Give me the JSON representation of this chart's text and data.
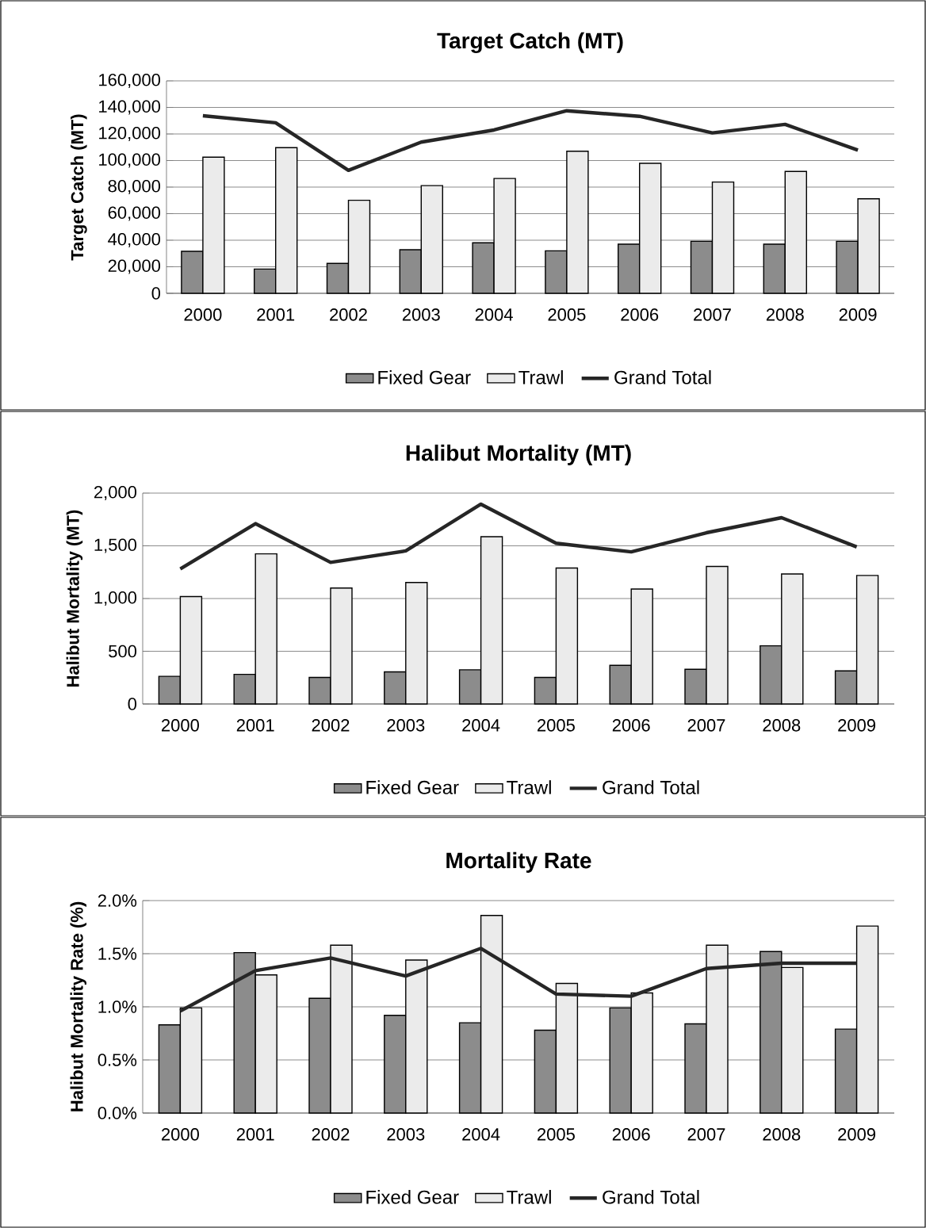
{
  "chart_data": [
    {
      "type": "bar",
      "title": "Target Catch (MT)",
      "ylabel": "Target Catch (MT)",
      "categories": [
        "2000",
        "2001",
        "2002",
        "2003",
        "2004",
        "2005",
        "2006",
        "2007",
        "2008",
        "2009"
      ],
      "series": [
        {
          "name": "Fixed Gear",
          "color": "#8c8c8c",
          "values": [
            31600,
            18300,
            22500,
            32800,
            38100,
            32000,
            37000,
            39200,
            37000,
            39200
          ]
        },
        {
          "name": "Trawl",
          "color": "#ebebeb",
          "values": [
            102500,
            109700,
            70100,
            81100,
            86500,
            107000,
            97900,
            83800,
            91800,
            71200
          ]
        },
        {
          "name": "Grand Total",
          "type": "line",
          "color": "#262626",
          "values": [
            133700,
            128400,
            92600,
            113900,
            123000,
            137500,
            133300,
            120800,
            127200,
            107800
          ]
        }
      ],
      "ylim": [
        0,
        160000
      ],
      "yticks": [
        0,
        {
          "value": 20000,
          "label": "20,000"
        },
        {
          "value": 40000,
          "label": "40,000"
        },
        {
          "value": 60000,
          "label": "60,000"
        },
        {
          "value": 80000,
          "label": "80,000"
        },
        {
          "value": 100000,
          "label": "100,000"
        },
        {
          "value": 120000,
          "label": "120,000"
        },
        {
          "value": 140000,
          "label": "140,000"
        },
        {
          "value": 160000,
          "label": "160,000"
        }
      ],
      "grid": "y",
      "legend": "bottom"
    },
    {
      "type": "bar",
      "title": "Halibut Mortality (MT)",
      "ylabel": "Halibut Mortality (MT)",
      "categories": [
        "2000",
        "2001",
        "2002",
        "2003",
        "2004",
        "2005",
        "2006",
        "2007",
        "2008",
        "2009"
      ],
      "series": [
        {
          "name": "Fixed Gear",
          "color": "#8c8c8c",
          "values": [
            262,
            281,
            252,
            305,
            324,
            252,
            367,
            329,
            552,
            314
          ]
        },
        {
          "name": "Trawl",
          "color": "#ebebeb",
          "values": [
            1019,
            1424,
            1100,
            1152,
            1586,
            1290,
            1090,
            1305,
            1233,
            1219
          ]
        },
        {
          "name": "Grand Total",
          "type": "line",
          "color": "#262626",
          "values": [
            1281,
            1710,
            1343,
            1452,
            1895,
            1524,
            1443,
            1624,
            1767,
            1490
          ]
        }
      ],
      "ylim": [
        0,
        2000
      ],
      "yticks": [
        0,
        500,
        {
          "value": 1000,
          "label": "1,000"
        },
        {
          "value": 1500,
          "label": "1,500"
        },
        {
          "value": 2000,
          "label": "2,000"
        }
      ],
      "grid": "y",
      "legend": "bottom"
    },
    {
      "type": "bar",
      "title": "Mortality Rate",
      "ylabel": "Halibut Mortality Rate (%)",
      "categories": [
        "2000",
        "2001",
        "2002",
        "2003",
        "2004",
        "2005",
        "2006",
        "2007",
        "2008",
        "2009"
      ],
      "series": [
        {
          "name": "Fixed Gear",
          "color": "#8c8c8c",
          "values": [
            0.83,
            1.51,
            1.08,
            0.92,
            0.85,
            0.78,
            0.99,
            0.84,
            1.52,
            0.79
          ]
        },
        {
          "name": "Trawl",
          "color": "#ebebeb",
          "values": [
            0.99,
            1.3,
            1.58,
            1.44,
            1.86,
            1.22,
            1.13,
            1.58,
            1.37,
            1.76
          ]
        },
        {
          "name": "Grand Total",
          "type": "line",
          "color": "#262626",
          "values": [
            0.96,
            1.34,
            1.46,
            1.29,
            1.55,
            1.12,
            1.1,
            1.36,
            1.41,
            1.41
          ]
        }
      ],
      "ylim": [
        0,
        2
      ],
      "yticks": [
        {
          "value": 0,
          "label": "0.0%"
        },
        {
          "value": 0.5,
          "label": "0.5%"
        },
        {
          "value": 1,
          "label": "1.0%"
        },
        {
          "value": 1.5,
          "label": "1.5%"
        },
        {
          "value": 2,
          "label": "2.0%"
        }
      ],
      "grid": "y",
      "legend": "bottom"
    }
  ]
}
